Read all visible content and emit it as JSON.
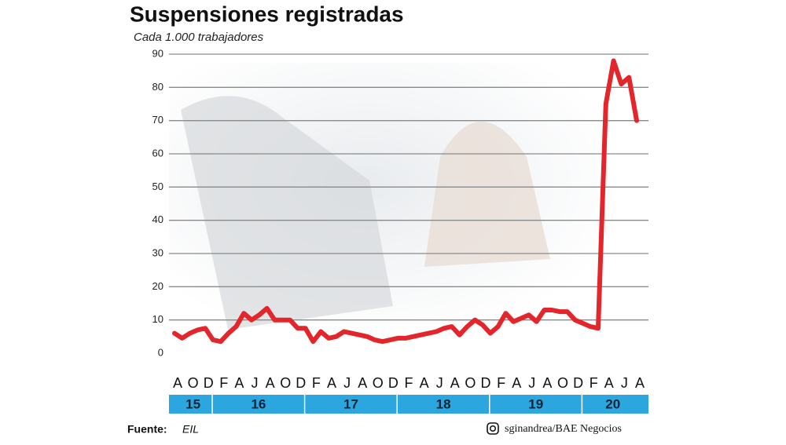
{
  "chart_data": {
    "type": "line",
    "title": "Suspensiones registradas",
    "subtitle": "Cada 1.000 trabajadores",
    "categories": [
      "A",
      null,
      "O",
      null,
      "D",
      null,
      "F",
      null,
      "A",
      null,
      "J",
      null,
      "A",
      null,
      "O",
      null,
      "D",
      null,
      "F",
      null,
      "A",
      null,
      "J",
      null,
      "A",
      null,
      "O",
      null,
      "D",
      null,
      "F",
      null,
      "A",
      null,
      "J",
      null,
      "A",
      null,
      "O",
      null,
      "D",
      null,
      "F",
      null,
      "A",
      null,
      "J",
      null,
      "A",
      null,
      "O",
      null,
      "D",
      null,
      "F",
      null,
      "A",
      null,
      "J",
      null,
      "A"
    ],
    "values": [
      6,
      4.5,
      6,
      7,
      7.5,
      4,
      3.5,
      6,
      8,
      12,
      10,
      11.5,
      13.5,
      10,
      10,
      10,
      7.5,
      7.5,
      3.5,
      6.5,
      4.5,
      5,
      6.5,
      6,
      5.5,
      5,
      4,
      3.5,
      4,
      4.5,
      4.5,
      5,
      5.5,
      6,
      6.5,
      7.5,
      8,
      5.5,
      8,
      10,
      8.5,
      6,
      8,
      12,
      9.5,
      10.5,
      11.5,
      9.5,
      13,
      13,
      12.5,
      12.5,
      10,
      9,
      8,
      7.5,
      75,
      88,
      81,
      83,
      70
    ],
    "color": "#e3262b",
    "years": [
      "15",
      "16",
      "17",
      "18",
      "19",
      "20"
    ],
    "ylim": [
      0,
      90
    ],
    "yticks": [
      0,
      10,
      20,
      30,
      40,
      50,
      60,
      70,
      80,
      90
    ],
    "grid": true
  },
  "footer": {
    "source_label": "Fuente:",
    "source": "EIL",
    "credit": "sginandrea/BAE Negocios"
  }
}
